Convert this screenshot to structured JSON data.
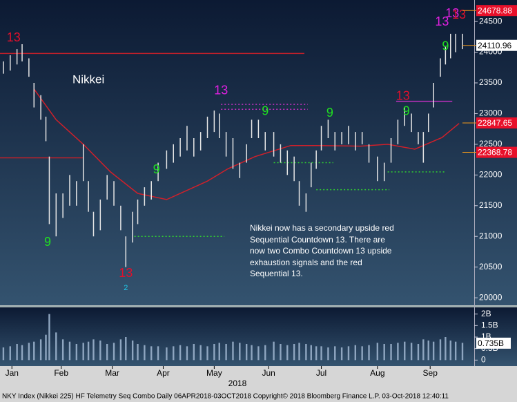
{
  "chart_data": {
    "type": "ohlc",
    "title": "Nikkei",
    "annotation": "Nikkei now has a secondary upside red Sequential Countdown 13.  There are now two  Combo Countdown 13 upside exhaustion signals and the red Sequential 13.",
    "footer": "NKY Index (Nikkei 225) HF Telemetry Seq Combo  Daily 06APR2018-03OCT2018  Copyright© 2018 Bloomberg Finance L.P.  03-Oct-2018 12:40:11",
    "x_label": "2018",
    "xlim": [
      4,
      276
    ],
    "xticks": [
      {
        "value": 11,
        "label": "Jan"
      },
      {
        "value": 40,
        "label": "Feb"
      },
      {
        "value": 70,
        "label": "Mar"
      },
      {
        "value": 100,
        "label": "Apr"
      },
      {
        "value": 130,
        "label": "May"
      },
      {
        "value": 162,
        "label": "Jun"
      },
      {
        "value": 193,
        "label": "Jul"
      },
      {
        "value": 226,
        "label": "Aug"
      },
      {
        "value": 257,
        "label": "Sep"
      }
    ],
    "ylim": [
      19900,
      24850
    ],
    "yticks": [
      20000,
      20500,
      21000,
      21500,
      22000,
      22500,
      23000,
      23500,
      24000,
      24500
    ],
    "x": [
      6,
      10,
      14,
      17,
      21,
      24,
      28,
      31,
      33,
      37,
      41,
      45,
      49,
      53,
      56,
      59,
      63,
      67,
      71,
      75,
      78,
      82,
      85,
      89,
      93,
      97,
      102,
      106,
      110,
      114,
      118,
      122,
      126,
      130,
      133,
      137,
      141,
      145,
      149,
      152,
      156,
      160,
      165,
      169,
      173,
      177,
      180,
      184,
      187,
      190,
      193,
      197,
      201,
      205,
      209,
      213,
      217,
      221,
      226,
      230,
      234,
      238,
      242,
      246,
      250,
      253,
      256,
      259,
      263,
      266,
      269,
      272,
      276
    ],
    "high": [
      23850,
      23950,
      24050,
      24130,
      23900,
      23500,
      23300,
      22950,
      22300,
      21700,
      21700,
      22000,
      21900,
      22500,
      21900,
      21400,
      21600,
      22000,
      21900,
      21500,
      21000,
      21400,
      21600,
      21800,
      21900,
      22200,
      22400,
      22500,
      22600,
      22800,
      22600,
      22700,
      22950,
      23050,
      23000,
      22700,
      22600,
      22200,
      22500,
      22900,
      22900,
      22700,
      22700,
      22500,
      22400,
      22300,
      21900,
      21700,
      22200,
      22400,
      22800,
      22900,
      22700,
      22700,
      22800,
      22700,
      22700,
      22500,
      22300,
      22200,
      22600,
      22900,
      23100,
      23000,
      22700,
      22700,
      23000,
      23500,
      23900,
      24100,
      24300,
      24300,
      24300
    ],
    "low": [
      23650,
      23700,
      23800,
      23850,
      23600,
      23100,
      22900,
      22550,
      21200,
      21000,
      21300,
      21500,
      21500,
      21900,
      21400,
      21000,
      21100,
      21600,
      21500,
      21100,
      20500,
      20900,
      21200,
      21500,
      21600,
      21900,
      22100,
      22200,
      22300,
      22400,
      22300,
      22400,
      22600,
      22700,
      22600,
      22300,
      22100,
      21950,
      22200,
      22600,
      22600,
      22400,
      22300,
      22200,
      22000,
      21900,
      21500,
      21400,
      21800,
      22100,
      22400,
      22600,
      22400,
      22500,
      22500,
      22400,
      22500,
      22200,
      21900,
      21900,
      22200,
      22500,
      22800,
      22700,
      22500,
      22200,
      22700,
      23100,
      23600,
      23800,
      23900,
      24000,
      24050
    ],
    "volume": [
      0.55,
      0.6,
      0.7,
      0.65,
      0.75,
      0.8,
      0.9,
      1.1,
      2.0,
      1.2,
      0.9,
      0.8,
      0.7,
      0.75,
      0.8,
      0.9,
      0.85,
      0.7,
      0.75,
      0.9,
      1.0,
      0.85,
      0.7,
      0.65,
      0.6,
      0.6,
      0.55,
      0.6,
      0.65,
      0.6,
      0.7,
      0.65,
      0.6,
      0.7,
      0.75,
      0.7,
      0.8,
      0.75,
      0.7,
      0.65,
      0.6,
      0.65,
      0.8,
      0.7,
      0.65,
      0.7,
      0.75,
      0.7,
      0.65,
      0.6,
      0.6,
      0.55,
      0.6,
      0.55,
      0.6,
      0.65,
      0.6,
      0.65,
      0.75,
      0.7,
      0.7,
      0.75,
      0.8,
      0.75,
      0.7,
      0.9,
      0.85,
      0.8,
      0.9,
      1.0,
      0.85,
      0.8,
      0.75
    ],
    "ma": {
      "color": "#d0202a",
      "x": [
        24,
        37,
        53,
        69,
        85,
        102,
        114,
        126,
        138,
        154,
        175,
        191,
        216,
        232,
        248,
        264,
        274
      ],
      "values": [
        23400,
        22900,
        22500,
        22050,
        21700,
        21600,
        21750,
        21900,
        22100,
        22300,
        22480,
        22480,
        22470,
        22500,
        22420,
        22610,
        22840
      ]
    },
    "levels": [
      {
        "value": 23980,
        "x": [
          4,
          183
        ],
        "color": "#c0202a",
        "dash": false
      },
      {
        "value": 22280,
        "x": [
          4,
          53
        ],
        "color": "#c0202a",
        "dash": false
      },
      {
        "value": 23150,
        "x": [
          134,
          185
        ],
        "color": "#c030c0",
        "dash": true
      },
      {
        "value": 23070,
        "x": [
          134,
          185
        ],
        "color": "#c030c0",
        "dash": true
      },
      {
        "value": 21000,
        "x": [
          83,
          136
        ],
        "color": "#30d030",
        "dash": true
      },
      {
        "value": 22200,
        "x": [
          165,
          200
        ],
        "color": "#30d030",
        "dash": true
      },
      {
        "value": 21760,
        "x": [
          190,
          233
        ],
        "color": "#30d030",
        "dash": true
      },
      {
        "value": 22050,
        "x": [
          232,
          266
        ],
        "color": "#30d030",
        "dash": true
      },
      {
        "value": 23200,
        "x": [
          237,
          270
        ],
        "color": "#c030c0",
        "dash": false
      }
    ],
    "counts": [
      {
        "text": "13",
        "color": "#e0102c",
        "x": 12,
        "y": 24230
      },
      {
        "text": "9",
        "color": "#20e020",
        "x": 32,
        "y": 20900
      },
      {
        "text": "13",
        "color": "#e0102c",
        "x": 78,
        "y": 20390
      },
      {
        "text": "2",
        "color": "#20c8e8",
        "x": 78,
        "y": 20160
      },
      {
        "text": "9",
        "color": "#20e020",
        "x": 96,
        "y": 22080
      },
      {
        "text": "13",
        "color": "#e020e0",
        "x": 134,
        "y": 23370
      },
      {
        "text": "9",
        "color": "#20e020",
        "x": 160,
        "y": 23030
      },
      {
        "text": "9",
        "color": "#20e020",
        "x": 198,
        "y": 23000
      },
      {
        "text": "13",
        "color": "#e0102c",
        "x": 241,
        "y": 23280
      },
      {
        "text": "9",
        "color": "#20e020",
        "x": 243,
        "y": 23030
      },
      {
        "text": "9",
        "color": "#20e020",
        "x": 266,
        "y": 24090
      },
      {
        "text": "13",
        "color": "#e020e0",
        "x": 264,
        "y": 24490
      },
      {
        "text": "13",
        "color": "#e020e0",
        "x": 270,
        "y": 24620
      },
      {
        "text": "13",
        "color": "#e0102c",
        "x": 274,
        "y": 24600
      }
    ],
    "price_tags": [
      {
        "value": 24678.88,
        "bg": "#e8102a",
        "fg": "#ffffff"
      },
      {
        "value": 24110.96,
        "bg": "#ffffff",
        "fg": "#000000"
      },
      {
        "value": 22847.65,
        "bg": "#e8102a",
        "fg": "#ffffff"
      },
      {
        "value": 22368.78,
        "bg": "#e8102a",
        "fg": "#ffffff"
      }
    ],
    "volume_ylim": [
      -0.2,
      2.2
    ],
    "volume_yticks": [
      {
        "value": 2,
        "label": "2B"
      },
      {
        "value": 1.5,
        "label": "1.5B"
      },
      {
        "value": 1,
        "label": "1B"
      },
      {
        "value": 0.5,
        "label": "0.5B"
      },
      0
    ],
    "volume_tag": {
      "value": 0.735,
      "label": "0.735B"
    },
    "bar_color": "#e6e6e6",
    "volume_color": "#8fa6c0"
  }
}
